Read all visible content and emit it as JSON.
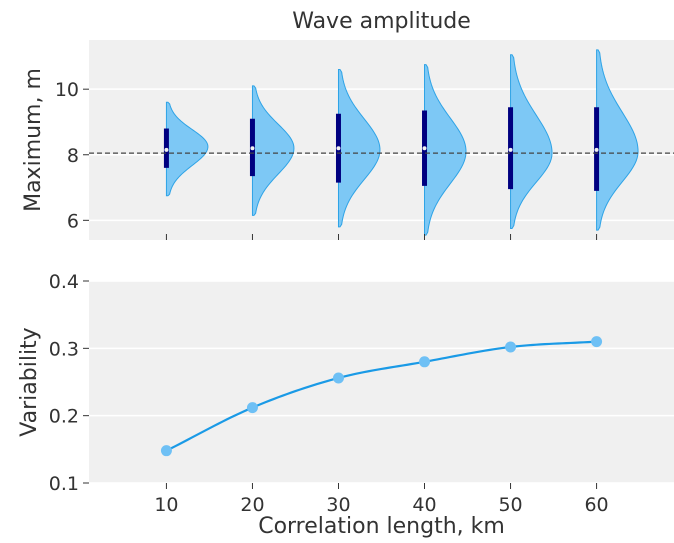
{
  "chart_data": [
    {
      "type": "violin",
      "title": "Wave amplitude",
      "xlabel": "",
      "ylabel": "Maximum, m",
      "xlim": [
        1,
        69
      ],
      "ylim": [
        5.4,
        11.5
      ],
      "yticks": [
        6,
        8,
        10
      ],
      "xticks": [
        10,
        20,
        30,
        40,
        50,
        60
      ],
      "grid": true,
      "reference_line": {
        "y": 8.05,
        "style": "dashed"
      },
      "colors": {
        "violin_fill": "#7dc8f5",
        "violin_edge": "#2ea3e6",
        "box": "#000080",
        "median": "#f0f0f0",
        "reference": "#444444"
      },
      "violins": [
        {
          "x": 10,
          "min": 6.75,
          "max": 9.6,
          "q1": 7.6,
          "q3": 8.8,
          "median": 8.15,
          "peak": 8.25
        },
        {
          "x": 20,
          "min": 6.15,
          "max": 10.1,
          "q1": 7.35,
          "q3": 9.1,
          "median": 8.2,
          "peak": 8.2
        },
        {
          "x": 30,
          "min": 5.8,
          "max": 10.6,
          "q1": 7.15,
          "q3": 9.25,
          "median": 8.2,
          "peak": 8.15
        },
        {
          "x": 40,
          "min": 5.55,
          "max": 10.75,
          "q1": 7.05,
          "q3": 9.35,
          "median": 8.2,
          "peak": 8.1
        },
        {
          "x": 50,
          "min": 5.75,
          "max": 11.05,
          "q1": 6.95,
          "q3": 9.45,
          "median": 8.15,
          "peak": 8.05
        },
        {
          "x": 60,
          "min": 5.7,
          "max": 11.2,
          "q1": 6.9,
          "q3": 9.45,
          "median": 8.15,
          "peak": 8.1
        }
      ]
    },
    {
      "type": "line",
      "title": "",
      "xlabel": "Correlation length, km",
      "ylabel": "Variability",
      "xlim": [
        1,
        69
      ],
      "ylim": [
        0.1,
        0.4
      ],
      "yticks": [
        0.1,
        0.2,
        0.3,
        0.4
      ],
      "ytick_labels": [
        "0.1",
        "0.2",
        "0.3",
        "0.4"
      ],
      "xticks": [
        10,
        20,
        30,
        40,
        50,
        60
      ],
      "xtick_labels": [
        "10",
        "20",
        "30",
        "40",
        "50",
        "60"
      ],
      "grid": true,
      "colors": {
        "line": "#1a9ae6",
        "marker": "#6ec0f5"
      },
      "x": [
        10,
        20,
        30,
        40,
        50,
        60
      ],
      "y": [
        0.148,
        0.212,
        0.256,
        0.28,
        0.302,
        0.31
      ]
    }
  ]
}
